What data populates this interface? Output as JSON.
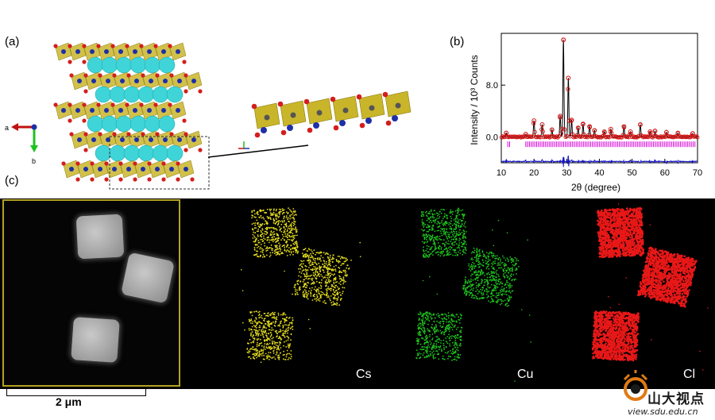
{
  "panels": {
    "a": "(a)",
    "b": "(b)",
    "c": "(c)"
  },
  "structure": {
    "axis_a": "a",
    "axis_b": "b",
    "colors": {
      "cs": "#3fd5d8",
      "cu": "#1e2fa8",
      "cl": "#d31e1e",
      "poly": "#c9b52a"
    }
  },
  "xrd": {
    "ylabel": "Intensity / 10³ Counts",
    "xlabel": "2θ (degree)",
    "yticks": [
      "0.0",
      "8.0"
    ],
    "xticks": [
      "10",
      "20",
      "30",
      "40",
      "50",
      "60",
      "70"
    ],
    "colors": {
      "obs": "#d01010",
      "calc": "#000000",
      "bragg": "#d400d4",
      "diff": "#1414c8"
    }
  },
  "chart_data": {
    "type": "line",
    "xlabel": "2θ (degree)",
    "ylabel": "Intensity / 10³ Counts",
    "xlim": [
      10,
      70
    ],
    "ylim": [
      -4,
      16
    ],
    "peaks": [
      {
        "x": 11.5,
        "y": 0.6
      },
      {
        "x": 17.5,
        "y": 0.4
      },
      {
        "x": 20.0,
        "y": 2.5
      },
      {
        "x": 22.5,
        "y": 1.9
      },
      {
        "x": 25.5,
        "y": 1.1
      },
      {
        "x": 28.0,
        "y": 3.2
      },
      {
        "x": 29.0,
        "y": 15.0
      },
      {
        "x": 30.5,
        "y": 9.1
      },
      {
        "x": 31.5,
        "y": 2.6
      },
      {
        "x": 33.5,
        "y": 1.4
      },
      {
        "x": 35.0,
        "y": 2.0
      },
      {
        "x": 37.0,
        "y": 1.6
      },
      {
        "x": 38.5,
        "y": 1.0
      },
      {
        "x": 41.5,
        "y": 0.8
      },
      {
        "x": 43.5,
        "y": 1.2
      },
      {
        "x": 47.5,
        "y": 1.6
      },
      {
        "x": 49.5,
        "y": 0.8
      },
      {
        "x": 52.5,
        "y": 1.9
      },
      {
        "x": 55.5,
        "y": 0.8
      },
      {
        "x": 57.0,
        "y": 0.9
      },
      {
        "x": 60.5,
        "y": 0.7
      },
      {
        "x": 64.0,
        "y": 0.6
      },
      {
        "x": 68.5,
        "y": 0.5
      }
    ],
    "baseline": 0.0,
    "bragg_offset": -1.2,
    "difference_offset": -3.8
  },
  "eds": {
    "elements": [
      {
        "label": "Cs",
        "color": "#e4dc1e"
      },
      {
        "label": "Cu",
        "color": "#1ec21e"
      },
      {
        "label": "Cl",
        "color": "#e81818"
      }
    ],
    "scalebar_label": "2 μm"
  },
  "watermark": {
    "text": "山大视点",
    "url": "view.sdu.edu.cn"
  }
}
